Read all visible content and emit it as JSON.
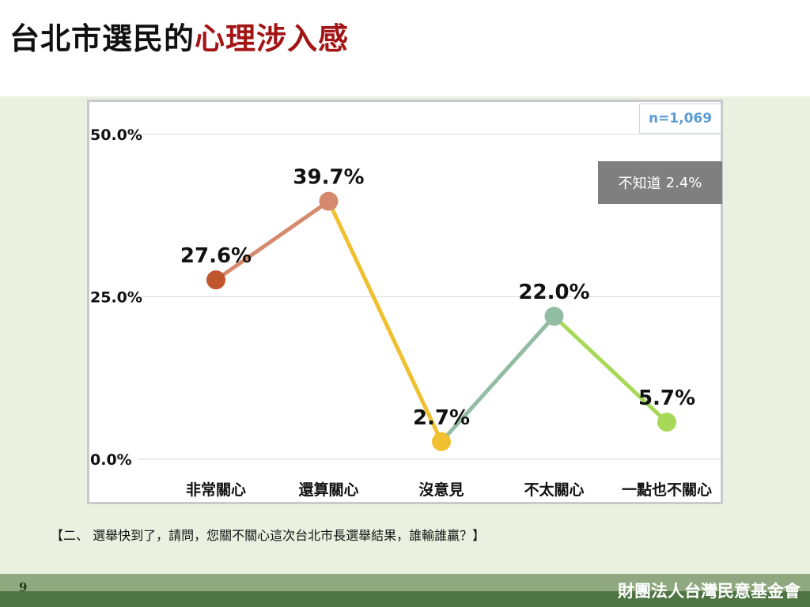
{
  "page": {
    "title_main": "台北市選民的",
    "title_accent": "心理涉入感",
    "sample_size": "n=1,069",
    "question": "【二、 選舉快到了，請問，您關不關心這次台北市長選舉結果，誰輸誰贏？】",
    "page_number": "9",
    "organization": "財團法人台灣民意基金會"
  },
  "unknown_note": {
    "label": "不知道",
    "value": "2.4%"
  },
  "chart_data": {
    "type": "line",
    "title": "",
    "xlabel": "",
    "ylabel": "",
    "categories": [
      "非常關心",
      "還算關心",
      "沒意見",
      "不太關心",
      "一點也不關心"
    ],
    "values": [
      27.6,
      39.7,
      2.7,
      22.0,
      5.7
    ],
    "value_labels": [
      "27.6%",
      "39.7%",
      "2.7%",
      "22.0%",
      "5.7%"
    ],
    "point_colors": [
      "#c0562c",
      "#d58a6e",
      "#f0c030",
      "#92bca4",
      "#a8d858"
    ],
    "segment_colors": [
      "#d58a6e",
      "#f0c030",
      "#92bca4",
      "#a8d858"
    ],
    "ylim": [
      0,
      50
    ],
    "yticks": [
      0,
      25,
      50
    ],
    "ytick_labels": [
      "0.0%",
      "25.0%",
      "50.0%"
    ],
    "grid": true,
    "legend": "none"
  }
}
